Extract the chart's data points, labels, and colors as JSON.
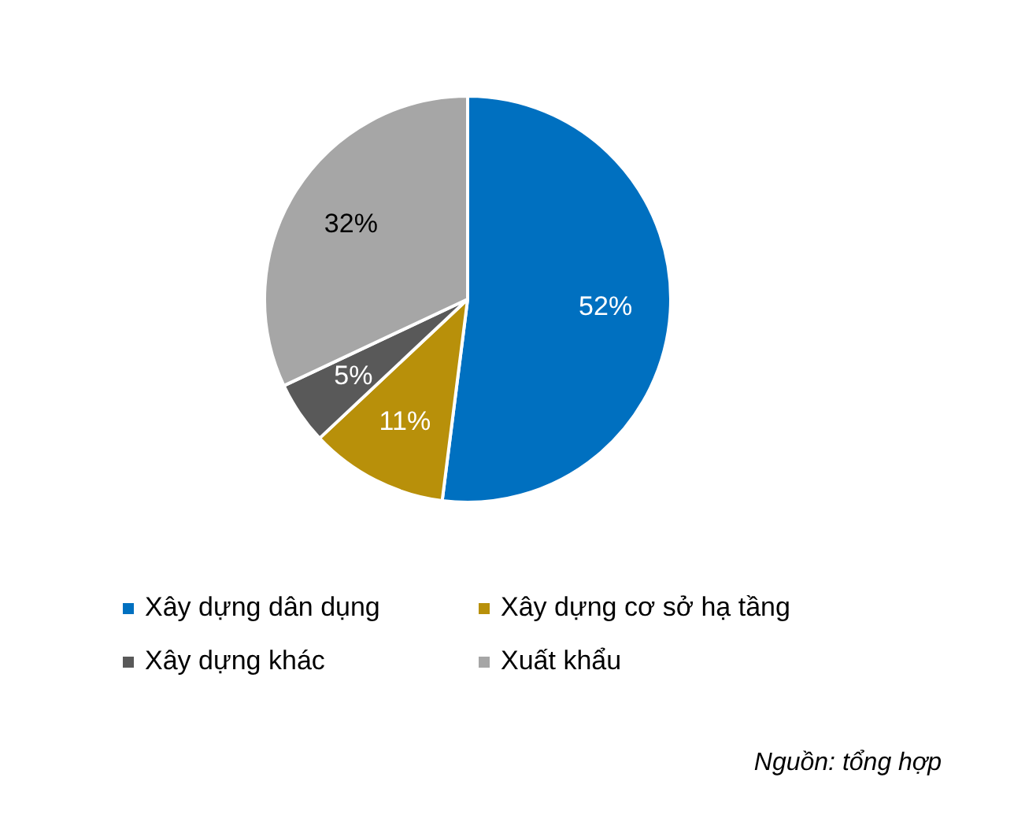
{
  "chart_data": {
    "type": "pie",
    "categories": [
      "Xây dựng dân dụng",
      "Xây dựng cơ sở hạ tầng",
      "Xây dựng khác",
      "Xuất khẩu"
    ],
    "values": [
      52,
      11,
      5,
      32
    ],
    "colors": [
      "#0070c0",
      "#b8900a",
      "#595959",
      "#a6a6a6"
    ],
    "value_labels": [
      "52%",
      "11%",
      "5%",
      "32%"
    ],
    "legend": "bottom",
    "annotations": [
      "Nguồn: tổng hợp"
    ]
  }
}
